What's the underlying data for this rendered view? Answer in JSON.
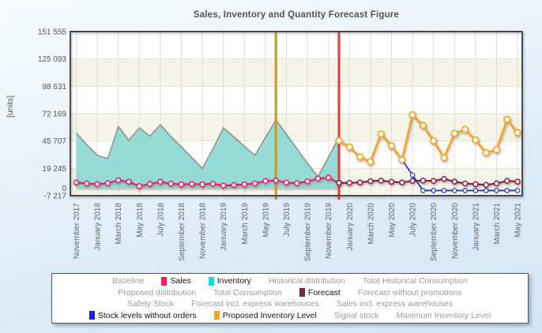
{
  "title": "Sales, Inventory and Quantity Forecast Figure",
  "y_axis": {
    "label": "[units]",
    "ticks": [
      {
        "label": "151 555",
        "value": 151555
      },
      {
        "label": "125 093",
        "value": 125093
      },
      {
        "label": "98 631",
        "value": 98631
      },
      {
        "label": "72 169",
        "value": 72169
      },
      {
        "label": "45 707",
        "value": 45707
      },
      {
        "label": "19 245",
        "value": 19245
      },
      {
        "label": "0",
        "value": 0
      },
      {
        "label": "-7 217",
        "value": -7217
      }
    ],
    "band_values": [
      151555,
      125093,
      98631,
      72169,
      45707,
      19245,
      -7217
    ]
  },
  "x_axis": {
    "step": 2,
    "visible_labels": [
      "November 2017",
      "January 2018",
      "March 2018",
      "May 2018",
      "July 2018",
      "September 2018",
      "November 2018",
      "January 2019",
      "March 2019",
      "May 2019",
      "July 2019",
      "September 2019",
      "November 2019",
      "January 2020",
      "March 2020",
      "May 2020",
      "July 2020",
      "September 2020",
      "November 2020",
      "January 2021",
      "March 2021",
      "May 2021"
    ]
  },
  "legend": {
    "rows": [
      [
        {
          "label": "Baseline"
        },
        {
          "label": "Sales",
          "swatch": "#ea1e5f"
        },
        {
          "label": "Inventory",
          "swatch": "#18dcdc"
        },
        {
          "label": "Historical distribution"
        },
        {
          "label": "Total Historical Consumption"
        }
      ],
      [
        {
          "label": "Proposed distribution"
        },
        {
          "label": "Total Consumption"
        },
        {
          "label": "Forecast",
          "swatch": "#8b1f3f"
        },
        {
          "label": "Forecast without promotions"
        }
      ],
      [
        {
          "label": "Safety Stock"
        },
        {
          "label": "Forecast incl. express warehouses"
        },
        {
          "label": "Sales incl. express warehouses"
        }
      ],
      [
        {
          "label": "Stock levels without orders",
          "swatch": "#1624e0"
        },
        {
          "label": "Proposed Inventory Level",
          "swatch": "#f5a31f"
        },
        {
          "label": "Signal stock"
        },
        {
          "label": "Maximum Inventory Level"
        }
      ]
    ]
  },
  "chart_data": {
    "type": "line",
    "title": "Sales, Inventory and Quantity Forecast Figure",
    "ylabel": "[units]",
    "ylim": [
      -7217,
      151555
    ],
    "grid": true,
    "legend_position": "bottom",
    "band_color": "#f4f4e9",
    "categories": [
      "November 2017",
      "December 2017",
      "January 2018",
      "February 2018",
      "March 2018",
      "April 2018",
      "May 2018",
      "June 2018",
      "July 2018",
      "August 2018",
      "September 2018",
      "October 2018",
      "November 2018",
      "December 2018",
      "January 2019",
      "February 2019",
      "March 2019",
      "April 2019",
      "May 2019",
      "June 2019",
      "July 2019",
      "August 2019",
      "September 2019",
      "October 2019",
      "November 2019",
      "December 2019",
      "January 2020",
      "February 2020",
      "March 2020",
      "April 2020",
      "May 2020",
      "June 2020",
      "July 2020",
      "August 2020",
      "September 2020",
      "October 2020",
      "November 2020",
      "December 2020",
      "January 2021",
      "February 2021",
      "March 2021",
      "April 2021",
      "May 2021"
    ],
    "vlines": [
      {
        "at": "June 2019",
        "color": "#c49a2f"
      },
      {
        "at": "December 2019",
        "color": "#e53935"
      }
    ],
    "series": [
      {
        "name": "Inventory",
        "type": "area",
        "line_color": "#8c8c84",
        "fill_color": "#8edcd6",
        "start_index": 0,
        "values": [
          53300,
          42000,
          31800,
          28700,
          59600,
          46200,
          58400,
          50300,
          61400,
          50000,
          40000,
          29500,
          19100,
          38000,
          58400,
          49500,
          40500,
          31800,
          49000,
          66000,
          52000,
          38000,
          24000,
          11000,
          30000,
          49500
        ]
      },
      {
        "name": "Sales",
        "type": "line",
        "color": "#ea1e5f",
        "start_index": 0,
        "values": [
          5600,
          4600,
          3900,
          4900,
          7700,
          6200,
          2100,
          4100,
          6200,
          4400,
          3700,
          4100,
          3700,
          4400,
          2600,
          3100,
          3700,
          4600,
          7100,
          7500,
          5500,
          4800,
          6600,
          9400,
          10200,
          5200
        ]
      },
      {
        "name": "Stock levels without orders",
        "type": "line",
        "color": "#2233cc",
        "start_index": 31,
        "skip_first_marker": true,
        "values": [
          27600,
          12700,
          -2200,
          -2200,
          -2200,
          -2200,
          -2200,
          -2200,
          -2200,
          -2200,
          -2200,
          -2200
        ]
      },
      {
        "name": "Forecast",
        "type": "line",
        "color": "#8b1f3f",
        "start_index": 25,
        "values": [
          5200,
          5200,
          5600,
          6800,
          7400,
          6200,
          5600,
          7100,
          7400,
          7100,
          9000,
          6400,
          4600,
          3900,
          3300,
          4600,
          7100,
          6400
        ]
      },
      {
        "name": "Proposed Inventory Level",
        "type": "line",
        "color": "#f2a41f",
        "start_index": 25,
        "values": [
          46000,
          39800,
          30200,
          25700,
          52500,
          41000,
          27600,
          71000,
          60700,
          45900,
          29500,
          53100,
          56900,
          46700,
          34300,
          37300,
          66500,
          53800
        ]
      }
    ]
  }
}
